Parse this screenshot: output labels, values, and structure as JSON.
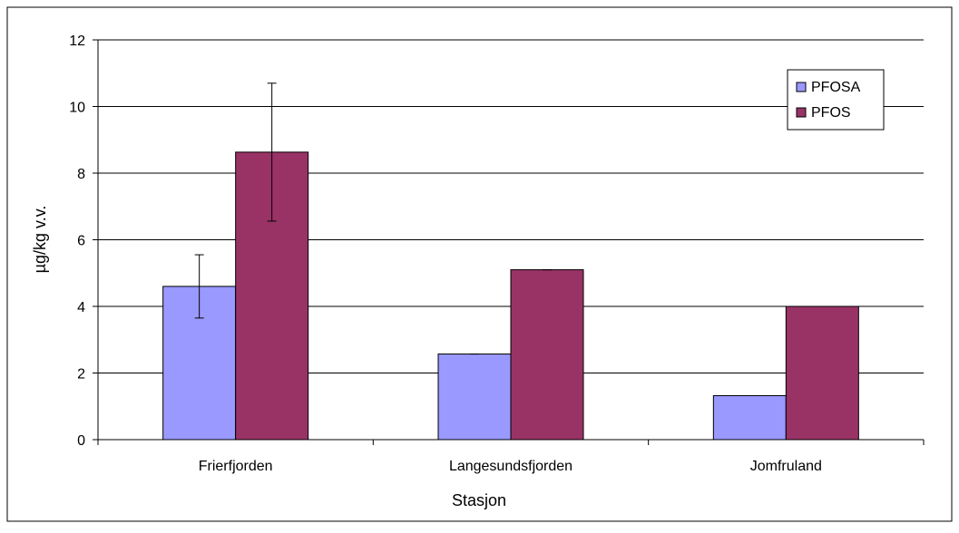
{
  "chart_data": {
    "type": "bar",
    "title": "",
    "xlabel": "Stasjon",
    "ylabel": "µg/kg v.v.",
    "categories": [
      "Frierfjorden",
      "Langesundsfjorden",
      "Jomfruland"
    ],
    "ylim": [
      0,
      12
    ],
    "yticks": [
      0,
      2,
      4,
      6,
      8,
      10,
      12
    ],
    "grid": true,
    "legend": "top-right",
    "series": [
      {
        "name": "PFOSA",
        "color": "#9999ff",
        "values": [
          4.6,
          2.57,
          1.32
        ],
        "error": [
          0.95,
          0.0,
          0.0
        ]
      },
      {
        "name": "PFOS",
        "color": "#993366",
        "values": [
          8.63,
          5.1,
          4.0
        ],
        "error": [
          2.07,
          0.0,
          0.0
        ]
      }
    ]
  }
}
